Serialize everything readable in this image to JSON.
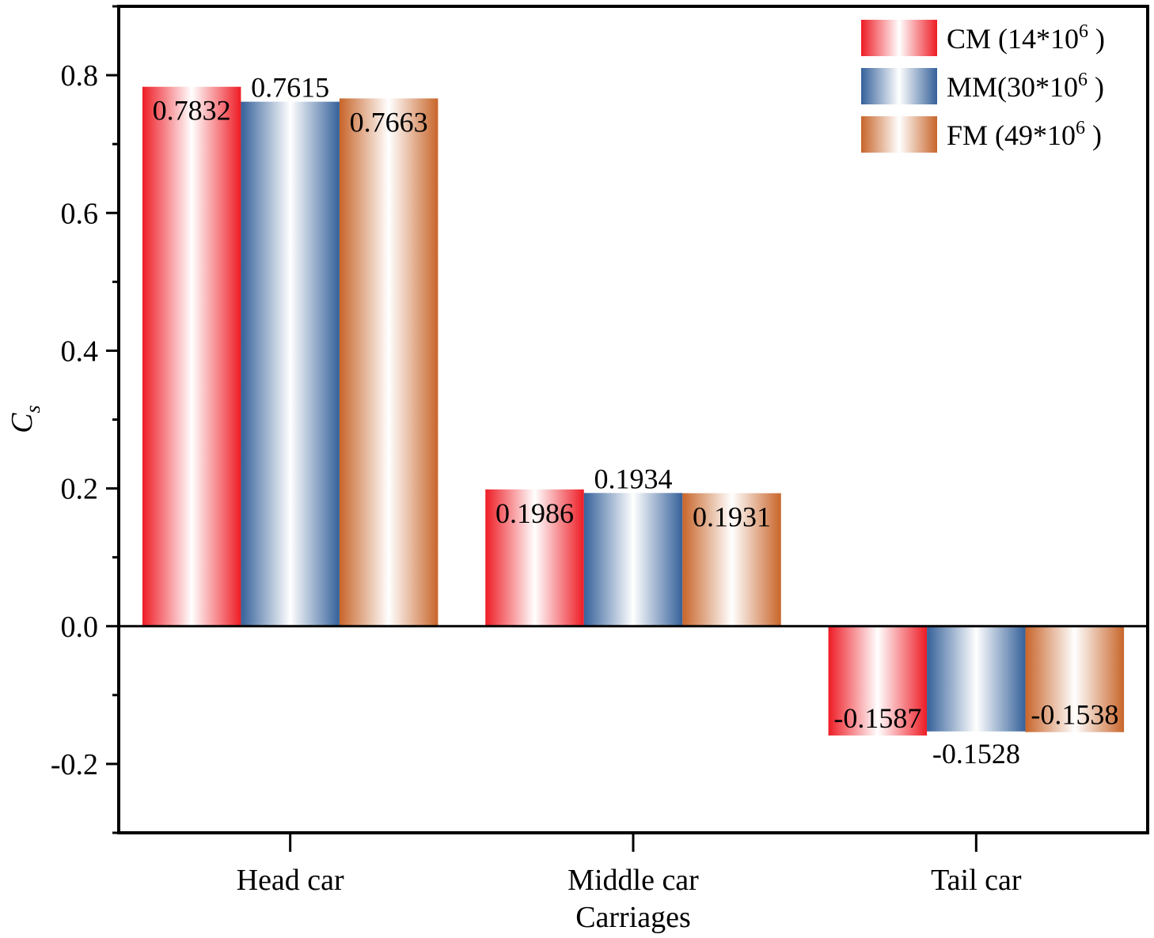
{
  "chart_data": {
    "type": "bar",
    "title": "",
    "xlabel": "Carriages",
    "ylabel": "C",
    "ylabel_sub": "s",
    "categories": [
      "Head car",
      "Middle car",
      "Tail car"
    ],
    "series": [
      {
        "name": "CM (14*10",
        "sup": "6",
        "suffix": " )",
        "color": "#ee1c25",
        "values": [
          0.7832,
          0.1986,
          -0.1587
        ],
        "labels": [
          "0.7832",
          "0.1986",
          "-0.1587"
        ]
      },
      {
        "name": "MM(30*10",
        "sup": "6",
        "suffix": " )",
        "color": "#35619a",
        "values": [
          0.7615,
          0.1934,
          -0.1528
        ],
        "labels": [
          "0.7615",
          "0.1934",
          "-0.1528"
        ]
      },
      {
        "name": "FM (49*10",
        "sup": "6",
        "suffix": " )",
        "color": "#c8652a",
        "values": [
          0.7663,
          0.1931,
          -0.1538
        ],
        "labels": [
          "0.7663",
          "0.1931",
          "-0.1538"
        ]
      }
    ],
    "ylim": [
      -0.3,
      0.9
    ],
    "yticks": [
      "-0.2",
      "0.0",
      "0.2",
      "0.4",
      "0.6",
      "0.8"
    ],
    "legend_position": "top-right",
    "grid": false
  }
}
